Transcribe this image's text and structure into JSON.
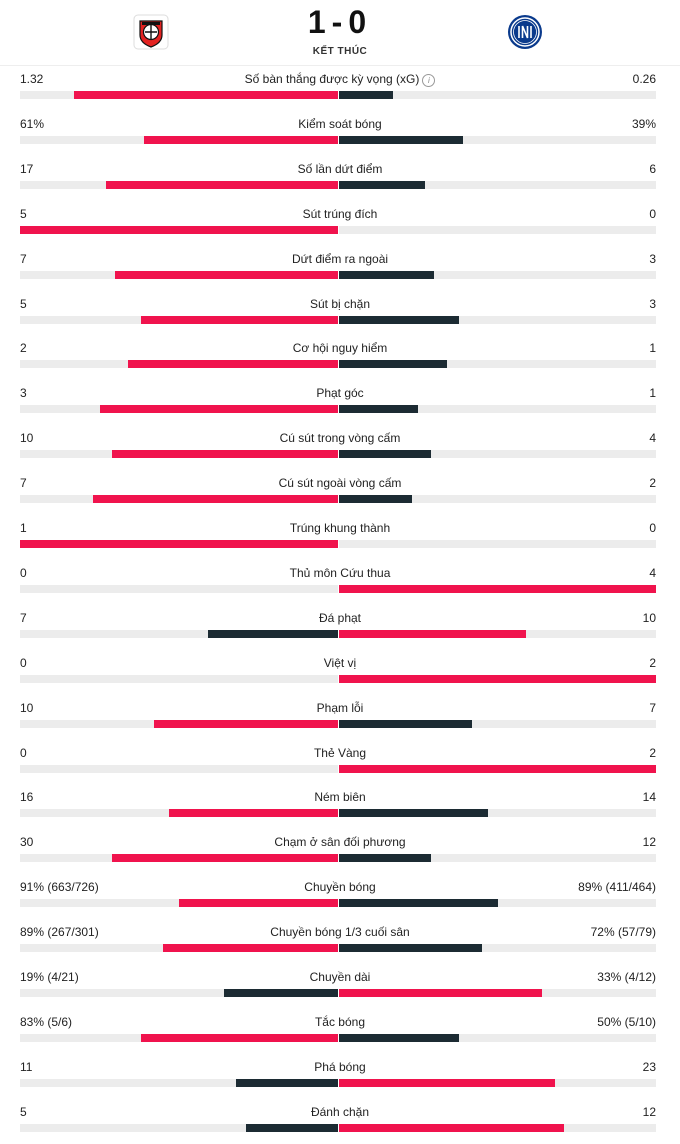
{
  "match": {
    "score": "1-0",
    "status": "KẾT THÚC",
    "home_logo_icon": "bayer-leverkusen-crest-icon",
    "away_logo_icon": "inter-milan-crest-icon"
  },
  "colors": {
    "winner": "#f0134d",
    "loser": "#1c2b33",
    "track": "#ececec"
  },
  "stats": [
    {
      "label": "Số bàn thắng được kỳ vọng (xG)",
      "home": "1.32",
      "away": "0.26",
      "home_frac": 0.83,
      "away_frac": 0.17,
      "info": true
    },
    {
      "label": "Kiểm soát bóng",
      "home": "61%",
      "away": "39%",
      "home_frac": 0.61,
      "away_frac": 0.39
    },
    {
      "label": "Số lần dứt điểm",
      "home": "17",
      "away": "6",
      "home_frac": 0.73,
      "away_frac": 0.27
    },
    {
      "label": "Sút trúng đích",
      "home": "5",
      "away": "0",
      "home_frac": 1.0,
      "away_frac": 0.0
    },
    {
      "label": "Dứt điểm ra ngoài",
      "home": "7",
      "away": "3",
      "home_frac": 0.7,
      "away_frac": 0.3
    },
    {
      "label": "Sút bị chặn",
      "home": "5",
      "away": "3",
      "home_frac": 0.62,
      "away_frac": 0.38
    },
    {
      "label": "Cơ hội nguy hiểm",
      "home": "2",
      "away": "1",
      "home_frac": 0.66,
      "away_frac": 0.34
    },
    {
      "label": "Phạt góc",
      "home": "3",
      "away": "1",
      "home_frac": 0.75,
      "away_frac": 0.25
    },
    {
      "label": "Cú sút trong vòng cấm",
      "home": "10",
      "away": "4",
      "home_frac": 0.71,
      "away_frac": 0.29
    },
    {
      "label": "Cú sút ngoài vòng cấm",
      "home": "7",
      "away": "2",
      "home_frac": 0.77,
      "away_frac": 0.23
    },
    {
      "label": "Trúng khung thành",
      "home": "1",
      "away": "0",
      "home_frac": 1.0,
      "away_frac": 0.0
    },
    {
      "label": "Thủ môn Cứu thua",
      "home": "0",
      "away": "4",
      "home_frac": 0.0,
      "away_frac": 1.0
    },
    {
      "label": "Đá phạt",
      "home": "7",
      "away": "10",
      "home_frac": 0.41,
      "away_frac": 0.59
    },
    {
      "label": "Việt vị",
      "home": "0",
      "away": "2",
      "home_frac": 0.0,
      "away_frac": 1.0
    },
    {
      "label": "Phạm lỗi",
      "home": "10",
      "away": "7",
      "home_frac": 0.58,
      "away_frac": 0.42
    },
    {
      "label": "Thẻ Vàng",
      "home": "0",
      "away": "2",
      "home_frac": 0.0,
      "away_frac": 1.0
    },
    {
      "label": "Ném biên",
      "home": "16",
      "away": "14",
      "home_frac": 0.53,
      "away_frac": 0.47
    },
    {
      "label": "Chạm ở sân đối phương",
      "home": "30",
      "away": "12",
      "home_frac": 0.71,
      "away_frac": 0.29
    },
    {
      "label": "Chuyền bóng",
      "home": "91% (663/726)",
      "away": "89% (411/464)",
      "home_frac": 0.5,
      "away_frac": 0.5
    },
    {
      "label": "Chuyền bóng 1/3 cuối sân",
      "home": "89% (267/301)",
      "away": "72% (57/79)",
      "home_frac": 0.55,
      "away_frac": 0.45
    },
    {
      "label": "Chuyền dài",
      "home": "19% (4/21)",
      "away": "33% (4/12)",
      "home_frac": 0.36,
      "away_frac": 0.64
    },
    {
      "label": "Tắc bóng",
      "home": "83% (5/6)",
      "away": "50% (5/10)",
      "home_frac": 0.62,
      "away_frac": 0.38
    },
    {
      "label": "Phá bóng",
      "home": "11",
      "away": "23",
      "home_frac": 0.32,
      "away_frac": 0.68
    },
    {
      "label": "Đánh chặn",
      "home": "5",
      "away": "12",
      "home_frac": 0.29,
      "away_frac": 0.71
    }
  ]
}
